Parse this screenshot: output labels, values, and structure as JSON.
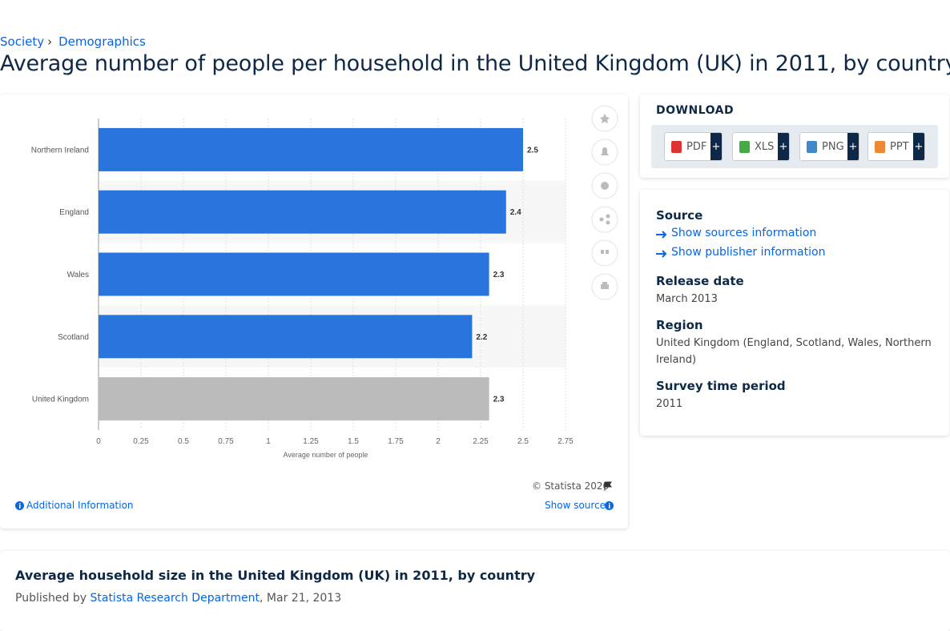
{
  "breadcrumb": {
    "items": [
      "Society",
      "Demographics"
    ],
    "separator": "›"
  },
  "title": "Average number of people per household in the United Kingdom (UK) in 2011, by country",
  "chart_data": {
    "type": "bar",
    "orientation": "horizontal",
    "categories": [
      "Northern Ireland",
      "England",
      "Wales",
      "Scotland",
      "United Kingdom"
    ],
    "values": [
      2.5,
      2.4,
      2.3,
      2.2,
      2.3
    ],
    "colors": [
      "#2876dd",
      "#2876dd",
      "#2876dd",
      "#2876dd",
      "#bbbbbb"
    ],
    "xlim": [
      0,
      2.75
    ],
    "xticks": [
      0,
      0.25,
      0.5,
      0.75,
      1,
      1.25,
      1.5,
      1.75,
      2,
      2.25,
      2.5,
      2.75
    ],
    "x_label": "Average number of people",
    "grid": true
  },
  "chart_footer": {
    "copyright": "© Statista 2020",
    "additional_information": "Additional Information",
    "show_source": "Show source"
  },
  "download": {
    "heading": "DOWNLOAD",
    "formats": [
      "PDF",
      "XLS",
      "PNG",
      "PPT"
    ],
    "plus": "+"
  },
  "details": {
    "source_heading": "Source",
    "show_sources": "Show sources information",
    "show_publisher": "Show publisher information",
    "fields": [
      {
        "label": "Release date",
        "value": "March 2013"
      },
      {
        "label": "Region",
        "value": "United Kingdom (England, Scotland, Wales, Northern Ireland)"
      },
      {
        "label": "Survey time period",
        "value": "2011"
      }
    ]
  },
  "publication": {
    "title": "Average household size in the United Kingdom (UK) in 2011, by country",
    "published_by": "Published by",
    "publisher": "Statista Research Department",
    "date": ", Mar 21, 2013"
  }
}
